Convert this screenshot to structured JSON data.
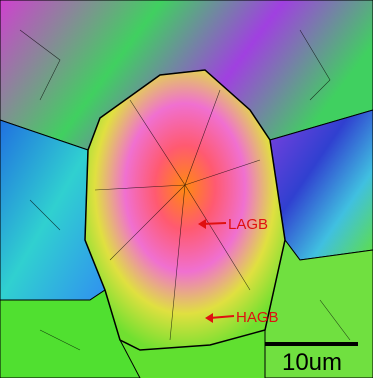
{
  "annotations": [
    {
      "label": "LAGB"
    },
    {
      "label": "HAGB"
    }
  ],
  "scale_bar": {
    "label": "10um"
  }
}
